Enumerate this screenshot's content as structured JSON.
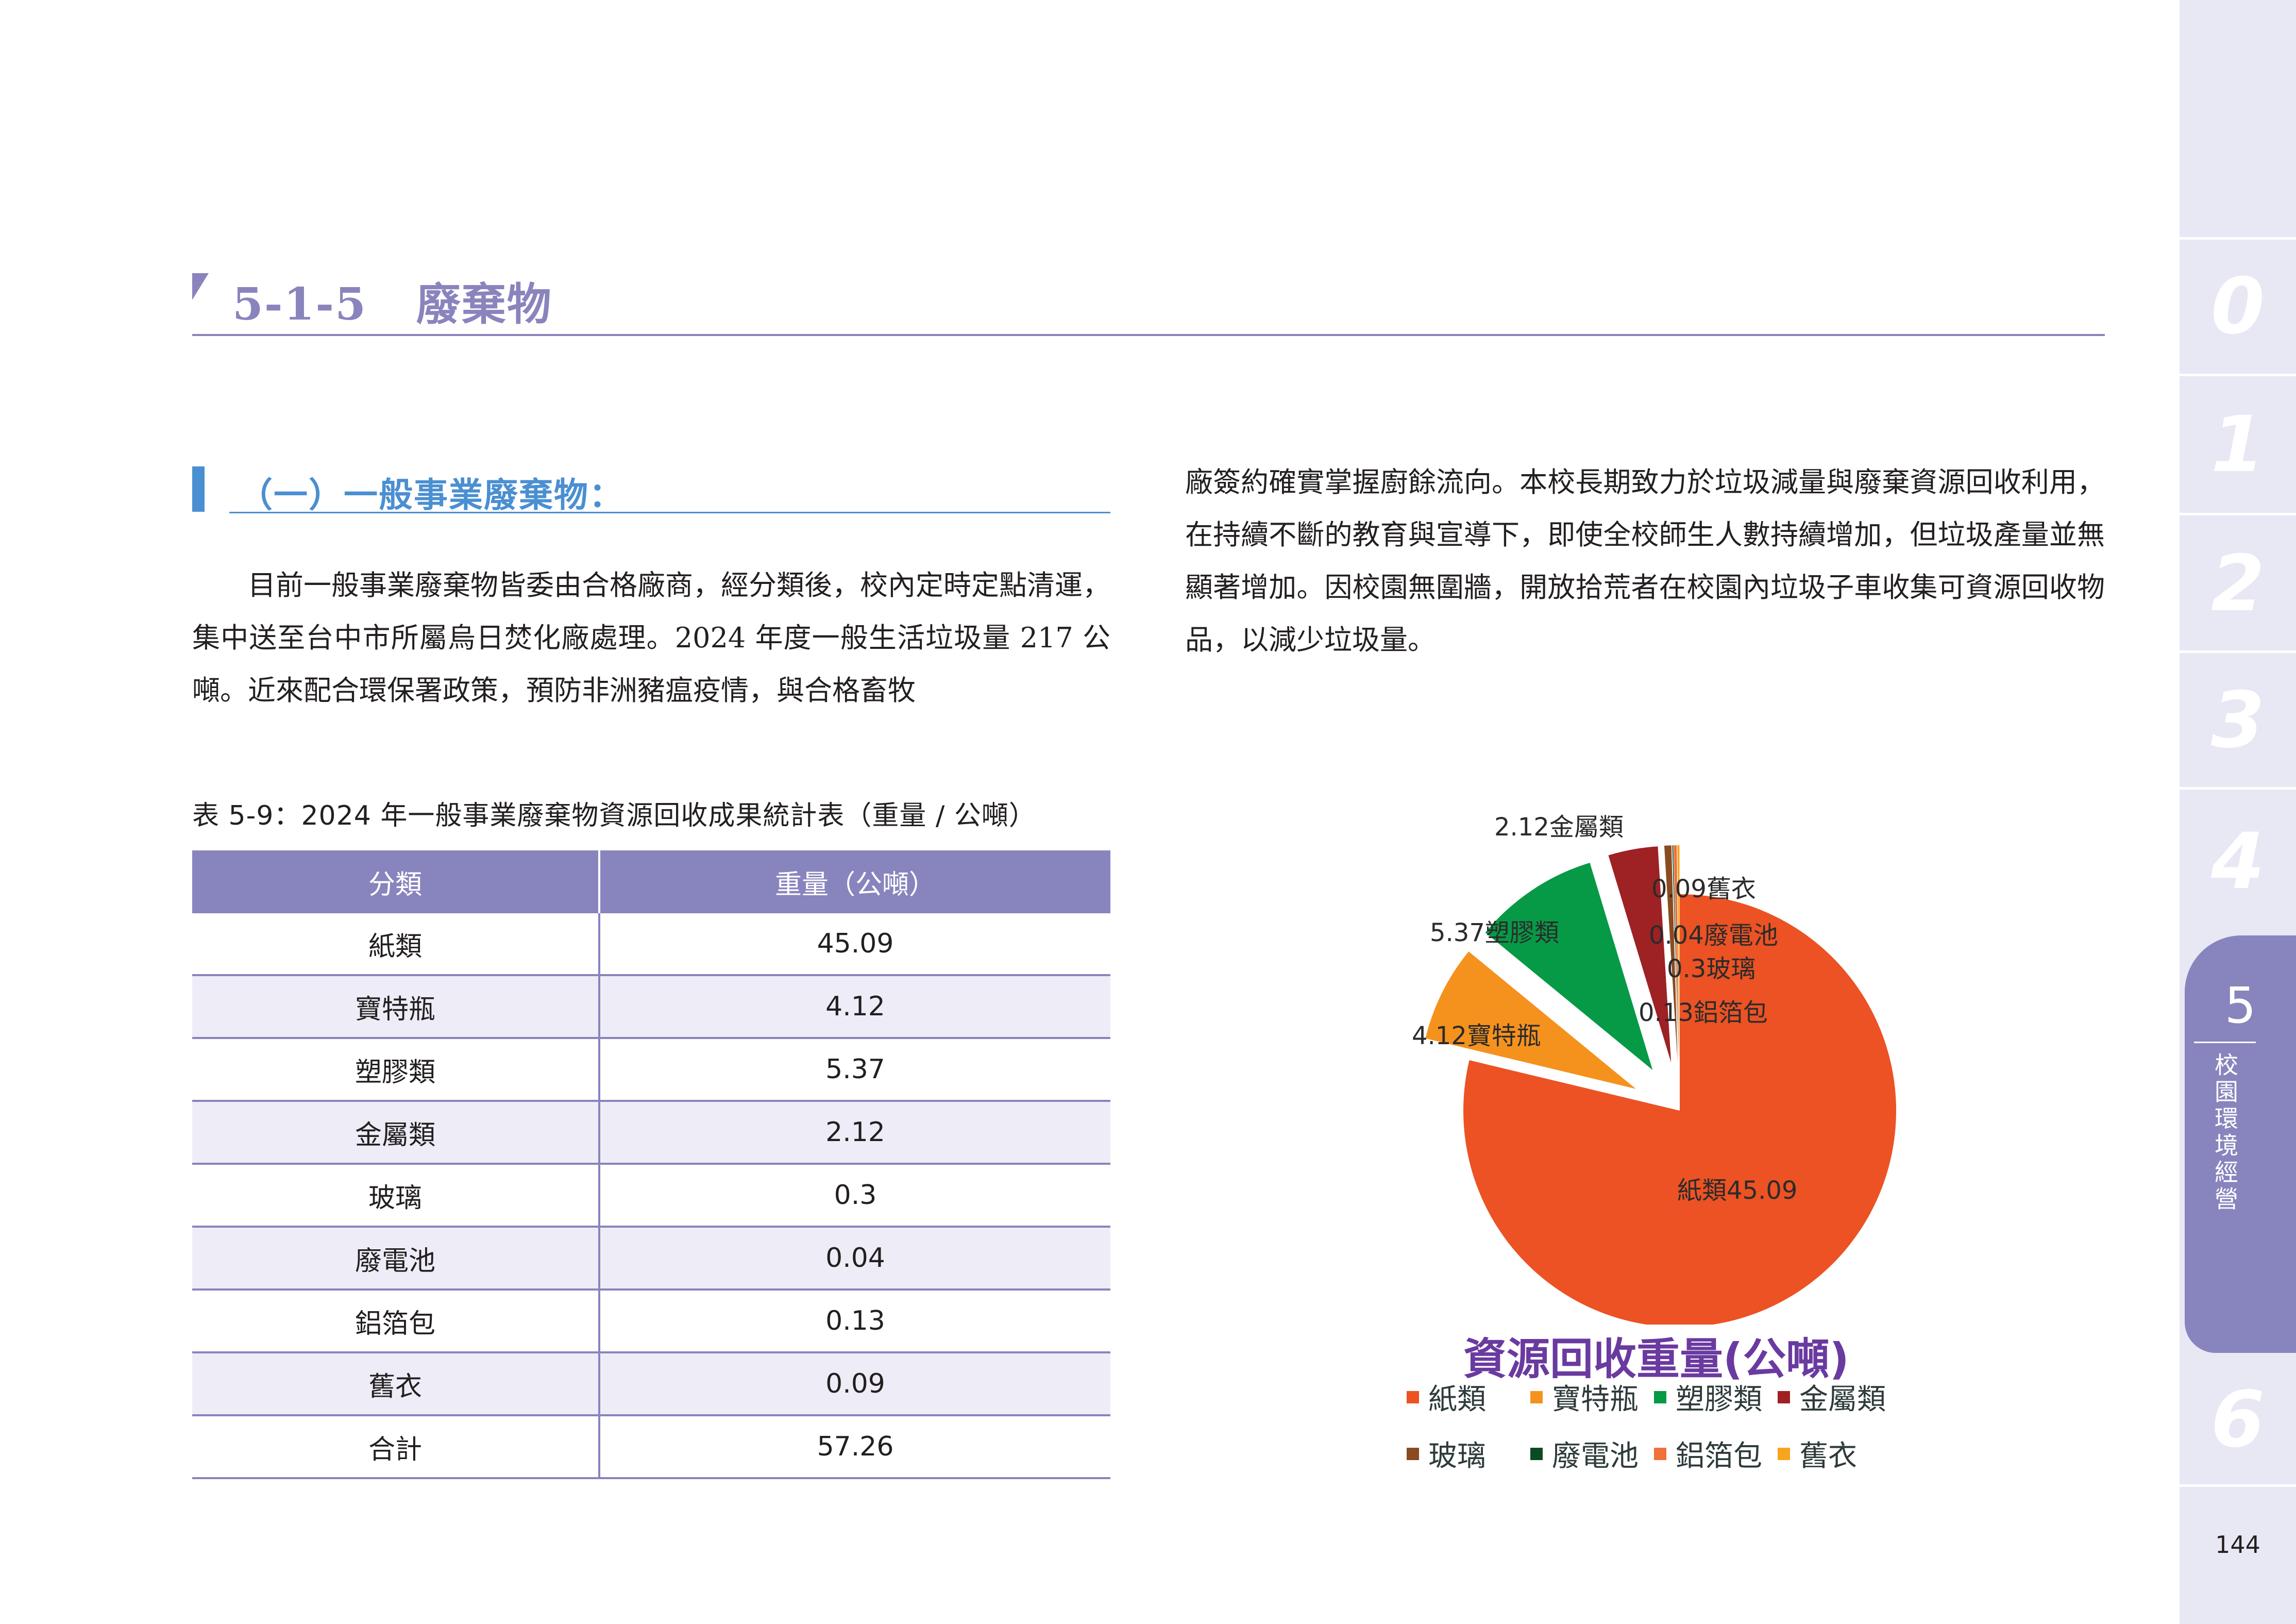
{
  "section": {
    "number": "5-1-5",
    "title": "廢棄物",
    "full": "5-1-5   廢棄物"
  },
  "subsection": {
    "title": "（一）一般事業廢棄物："
  },
  "paragraphs": {
    "left": "目前一般事業廢棄物皆委由合格廠商，經分類後，校內定時定點清運，集中送至台中市所屬烏日焚化廠處理。2024 年度一般生活垃圾量 217 公噸。近來配合環保署政策，預防非洲豬瘟疫情，與合格畜牧",
    "right": "廠簽約確實掌握廚餘流向。本校長期致力於垃圾減量與廢棄資源回收利用，在持續不斷的教育與宣導下，即使全校師生人數持續增加，但垃圾產量並無顯著增加。因校園無圍牆，開放拾荒者在校園內垃圾子車收集可資源回收物品，以減少垃圾量。"
  },
  "table": {
    "caption": "表 5-9：2024 年一般事業廢棄物資源回收成果統計表（重量 / 公噸）",
    "headers": [
      "分類",
      "重量（公噸）"
    ],
    "rows": [
      {
        "category": "紙類",
        "weight": "45.09"
      },
      {
        "category": "寶特瓶",
        "weight": "4.12"
      },
      {
        "category": "塑膠類",
        "weight": "5.37"
      },
      {
        "category": "金屬類",
        "weight": "2.12"
      },
      {
        "category": "玻璃",
        "weight": "0.3"
      },
      {
        "category": "廢電池",
        "weight": "0.04"
      },
      {
        "category": "鋁箔包",
        "weight": "0.13"
      },
      {
        "category": "舊衣",
        "weight": "0.09"
      },
      {
        "category": "合計",
        "weight": "57.26"
      }
    ]
  },
  "chart_data": {
    "type": "pie",
    "title": "資源回收重量(公噸)",
    "categories": [
      "紙類",
      "寶特瓶",
      "塑膠類",
      "金屬類",
      "玻璃",
      "廢電池",
      "鋁箔包",
      "舊衣"
    ],
    "values": [
      45.09,
      4.12,
      5.37,
      2.12,
      0.3,
      0.04,
      0.13,
      0.09
    ],
    "colors": [
      "#ec5223",
      "#f5921e",
      "#069a46",
      "#9e2124",
      "#8b4a1f",
      "#0c4a24",
      "#f0703a",
      "#f7a51c"
    ],
    "data_labels": [
      "紙類45.09",
      "4.12寶特瓶",
      "5.37塑膠類",
      "2.12金屬類",
      "0.3玻璃",
      "0.04廢電池",
      "0.13鋁箔包",
      "0.09舊衣"
    ],
    "exploded": true,
    "legend_position": "bottom",
    "unit": "公噸"
  },
  "sidebar": {
    "tabs": [
      {
        "label": "0"
      },
      {
        "label": "1"
      },
      {
        "label": "2"
      },
      {
        "label": "3"
      },
      {
        "label": "4"
      },
      {
        "label": "5",
        "name": "校園環境經營",
        "active": true
      },
      {
        "label": "6"
      }
    ],
    "page_number": "144"
  },
  "colors": {
    "accent_purple": "#8884bd",
    "accent_blue": "#4a8fd1",
    "row_alt": "#eeedf7",
    "sidebar_bg": "#e8e7f4",
    "chart_title": "#6a3aa0"
  }
}
